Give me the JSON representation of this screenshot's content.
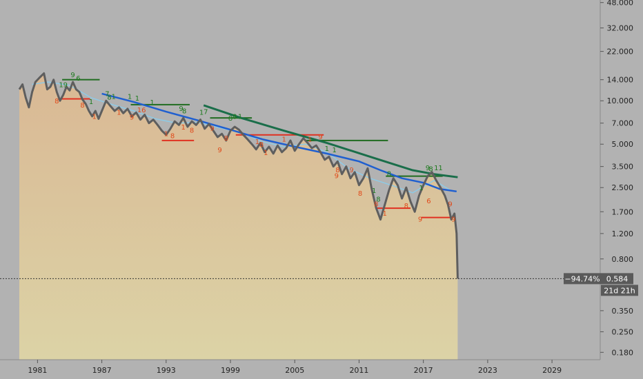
{
  "colors": {
    "background": "#b2b2b2",
    "price": "#5e5e5e",
    "area_top": "#d9b894",
    "area_bottom": "#dcd3a6",
    "ma_fast": "#8ecae6",
    "ma_mid": "#1f5fd0",
    "ma_slow": "#1a6e4a",
    "buy_signal": "#1d7a1d",
    "sell_signal": "#e04a1a",
    "resistance": "#1f6b1f",
    "support": "#e03020",
    "tag_bg": "#5a5a5a"
  },
  "chart_data": {
    "type": "line",
    "scale": "log",
    "ylim": [
      0.16,
      50
    ],
    "xlim": [
      1977.5,
      2033.5
    ],
    "y_ticks": [
      "48.000",
      "32.000",
      "22.000",
      "14.000",
      "10.000",
      "7.000",
      "5.000",
      "3.500",
      "2.500",
      "1.700",
      "1.200",
      "0.800",
      "0.350",
      "0.250",
      "0.180"
    ],
    "y_tick_values": [
      48,
      32,
      22,
      14,
      10,
      7,
      5,
      3.5,
      2.5,
      1.7,
      1.2,
      0.8,
      0.35,
      0.25,
      0.18
    ],
    "x_ticks": [
      "1981",
      "1987",
      "1993",
      "1999",
      "2005",
      "2011",
      "2017",
      "2023",
      "2029"
    ],
    "x_tick_values": [
      1981,
      1987,
      1993,
      1999,
      2005,
      2011,
      2017,
      2023,
      2029
    ],
    "grid": false,
    "price_series": {
      "x": [
        1979.3,
        1979.6,
        1979.9,
        1980.2,
        1980.5,
        1980.8,
        1981.2,
        1981.6,
        1981.9,
        1982.2,
        1982.5,
        1982.8,
        1983.1,
        1983.4,
        1983.7,
        1984.0,
        1984.3,
        1984.6,
        1984.9,
        1985.2,
        1985.5,
        1985.8,
        1986.1,
        1986.4,
        1986.7,
        1987.0,
        1987.4,
        1987.8,
        1988.2,
        1988.6,
        1989.0,
        1989.4,
        1989.8,
        1990.2,
        1990.6,
        1991.0,
        1991.4,
        1991.8,
        1992.2,
        1992.6,
        1993.0,
        1993.4,
        1993.8,
        1994.2,
        1994.6,
        1995.0,
        1995.4,
        1995.8,
        1996.2,
        1996.6,
        1997.0,
        1997.4,
        1997.8,
        1998.2,
        1998.6,
        1999.0,
        1999.4,
        1999.8,
        2000.2,
        2000.6,
        2001.0,
        2001.4,
        2001.8,
        2002.2,
        2002.6,
        2003.0,
        2003.4,
        2003.8,
        2004.2,
        2004.6,
        2005.0,
        2005.4,
        2005.8,
        2006.2,
        2006.6,
        2007.0,
        2007.4,
        2007.8,
        2008.2,
        2008.6,
        2009.0,
        2009.4,
        2009.8,
        2010.2,
        2010.6,
        2011.0,
        2011.4,
        2011.8,
        2012.2,
        2012.6,
        2013.0,
        2013.4,
        2013.8,
        2014.2,
        2014.6,
        2015.0,
        2015.4,
        2015.8,
        2016.2,
        2016.6,
        2017.0,
        2017.4,
        2017.8,
        2018.2,
        2018.6,
        2019.0,
        2019.3,
        2019.6,
        2019.9,
        2020.1,
        2020.2
      ],
      "y": [
        12.0,
        13.0,
        10.5,
        9.0,
        11.5,
        13.5,
        14.5,
        15.5,
        12.0,
        12.5,
        14.0,
        11.5,
        10.0,
        11.0,
        12.5,
        11.8,
        13.5,
        12.0,
        11.5,
        10.2,
        9.5,
        8.5,
        7.8,
        8.5,
        7.5,
        8.5,
        10.0,
        9.2,
        8.5,
        9.0,
        8.2,
        8.8,
        7.8,
        8.3,
        7.4,
        8.0,
        7.0,
        7.4,
        6.8,
        6.2,
        5.8,
        6.4,
        7.2,
        6.8,
        7.6,
        6.6,
        7.2,
        6.8,
        7.4,
        6.4,
        6.9,
        6.2,
        5.6,
        5.9,
        5.3,
        6.2,
        6.6,
        6.3,
        5.8,
        5.4,
        5.0,
        4.6,
        5.1,
        4.4,
        4.8,
        4.3,
        4.9,
        4.4,
        4.7,
        5.3,
        4.5,
        5.0,
        5.5,
        5.1,
        4.7,
        4.9,
        4.4,
        3.9,
        4.1,
        3.5,
        3.8,
        3.1,
        3.5,
        2.9,
        3.2,
        2.6,
        2.9,
        3.4,
        2.4,
        1.8,
        1.5,
        1.9,
        2.4,
        2.9,
        2.6,
        2.1,
        2.5,
        2.0,
        1.7,
        2.2,
        2.6,
        3.0,
        3.2,
        2.8,
        2.5,
        2.2,
        1.9,
        1.5,
        1.65,
        1.2,
        0.584
      ]
    },
    "ma_fast": {
      "x": [
        1980.5,
        1982,
        1984,
        1986,
        1988,
        1990,
        1992,
        1994,
        1996,
        1998,
        2000,
        2002,
        2004,
        2006,
        2008,
        2010,
        2012,
        2014,
        2016,
        2018,
        2019.5
      ],
      "y": [
        13.0,
        13.5,
        12.8,
        10.5,
        9.4,
        8.5,
        7.5,
        7.0,
        7.1,
        6.5,
        6.0,
        5.2,
        4.8,
        5.0,
        4.4,
        3.4,
        2.9,
        2.6,
        2.3,
        2.8,
        2.4
      ]
    },
    "ma_mid": {
      "x": [
        1987.0,
        1990,
        1993,
        1996,
        1999,
        2002,
        2005,
        2008,
        2011,
        2013,
        2015,
        2017,
        2018.5,
        2020.1
      ],
      "y": [
        11.2,
        9.8,
        8.4,
        7.3,
        6.3,
        5.4,
        4.8,
        4.3,
        3.8,
        3.3,
        2.9,
        2.7,
        2.45,
        2.35
      ]
    },
    "ma_slow": {
      "x": [
        1996.5,
        2000,
        2004,
        2008,
        2012,
        2016,
        2018,
        2020.2
      ],
      "y": [
        9.3,
        7.6,
        6.2,
        5.1,
        4.1,
        3.3,
        3.1,
        2.95
      ]
    },
    "resistance_levels": [
      {
        "x0": 1983.3,
        "x1": 1986.8,
        "y": 14.0
      },
      {
        "x0": 1989.7,
        "x1": 1995.2,
        "y": 9.4
      },
      {
        "x0": 1997.1,
        "x1": 2001.0,
        "y": 7.6
      },
      {
        "x0": 2006.0,
        "x1": 2013.7,
        "y": 5.3
      },
      {
        "x0": 2013.5,
        "x1": 2018.8,
        "y": 3.0
      }
    ],
    "support_levels": [
      {
        "x0": 1983.0,
        "x1": 1985.9,
        "y": 10.3
      },
      {
        "x0": 1992.6,
        "x1": 1995.6,
        "y": 5.3
      },
      {
        "x0": 1999.5,
        "x1": 2007.7,
        "y": 5.8
      },
      {
        "x0": 2012.6,
        "x1": 2015.8,
        "y": 1.8
      },
      {
        "x0": 2016.8,
        "x1": 2019.8,
        "y": 1.55
      }
    ],
    "buy_signals": [
      {
        "x": 1984.3,
        "y": 14.6,
        "label": "9"
      },
      {
        "x": 1984.8,
        "y": 13.8,
        "label": "6"
      },
      {
        "x": 1983.6,
        "y": 12.4,
        "label": "9"
      },
      {
        "x": 1983.2,
        "y": 12.4,
        "label": "1"
      },
      {
        "x": 1987.5,
        "y": 10.8,
        "label": "7"
      },
      {
        "x": 1987.7,
        "y": 10.2,
        "label": "8"
      },
      {
        "x": 1988.1,
        "y": 10.3,
        "label": "1"
      },
      {
        "x": 1986.0,
        "y": 9.5,
        "label": "1"
      },
      {
        "x": 1989.6,
        "y": 10.3,
        "label": "1"
      },
      {
        "x": 1990.3,
        "y": 10.0,
        "label": "1"
      },
      {
        "x": 1991.7,
        "y": 9.4,
        "label": "1"
      },
      {
        "x": 1994.4,
        "y": 8.5,
        "label": "9"
      },
      {
        "x": 1994.7,
        "y": 8.2,
        "label": "8"
      },
      {
        "x": 1996.3,
        "y": 8.0,
        "label": "1"
      },
      {
        "x": 1996.7,
        "y": 8.1,
        "label": "7"
      },
      {
        "x": 1999.0,
        "y": 7.3,
        "label": "8"
      },
      {
        "x": 1999.4,
        "y": 7.5,
        "label": "8"
      },
      {
        "x": 1999.9,
        "y": 7.5,
        "label": "1"
      },
      {
        "x": 2008.0,
        "y": 4.5,
        "label": "1"
      },
      {
        "x": 2008.7,
        "y": 4.4,
        "label": "1"
      },
      {
        "x": 2013.8,
        "y": 3.0,
        "label": "8"
      },
      {
        "x": 2017.4,
        "y": 3.3,
        "label": "9"
      },
      {
        "x": 2017.7,
        "y": 3.25,
        "label": "8"
      },
      {
        "x": 2018.2,
        "y": 3.3,
        "label": "1"
      },
      {
        "x": 2018.6,
        "y": 3.3,
        "label": "1"
      },
      {
        "x": 2012.4,
        "y": 2.3,
        "label": "1"
      },
      {
        "x": 2016.8,
        "y": 2.4,
        "label": "1"
      },
      {
        "x": 2012.8,
        "y": 2.0,
        "label": "8"
      }
    ],
    "sell_signals": [
      {
        "x": 1982.8,
        "y": 9.6,
        "label": "8"
      },
      {
        "x": 1985.2,
        "y": 9.0,
        "label": "8"
      },
      {
        "x": 1986.3,
        "y": 7.5,
        "label": "1"
      },
      {
        "x": 1988.6,
        "y": 8.0,
        "label": "1"
      },
      {
        "x": 1989.8,
        "y": 7.4,
        "label": "9"
      },
      {
        "x": 1990.7,
        "y": 8.3,
        "label": "16"
      },
      {
        "x": 1993.0,
        "y": 5.7,
        "label": "1"
      },
      {
        "x": 1993.6,
        "y": 5.5,
        "label": "8"
      },
      {
        "x": 1995.4,
        "y": 6.0,
        "label": "8"
      },
      {
        "x": 1997.3,
        "y": 6.2,
        "label": "9"
      },
      {
        "x": 1998.6,
        "y": 5.3,
        "label": "8"
      },
      {
        "x": 1998.0,
        "y": 4.4,
        "label": "9"
      },
      {
        "x": 2001.5,
        "y": 5.0,
        "label": "1"
      },
      {
        "x": 2001.9,
        "y": 4.8,
        "label": "8"
      },
      {
        "x": 2006.4,
        "y": 5.2,
        "label": "1"
      },
      {
        "x": 2007.4,
        "y": 5.4,
        "label": "9"
      },
      {
        "x": 2004.0,
        "y": 5.2,
        "label": "1"
      },
      {
        "x": 2008.9,
        "y": 2.9,
        "label": "9"
      },
      {
        "x": 2010.3,
        "y": 3.2,
        "label": "9"
      },
      {
        "x": 2009.0,
        "y": 3.2,
        "label": "8"
      },
      {
        "x": 2011.1,
        "y": 2.2,
        "label": "8"
      },
      {
        "x": 2012.6,
        "y": 1.85,
        "label": "8"
      },
      {
        "x": 2013.4,
        "y": 1.6,
        "label": "1"
      },
      {
        "x": 2015.4,
        "y": 1.8,
        "label": "8"
      },
      {
        "x": 2016.7,
        "y": 1.45,
        "label": "9"
      },
      {
        "x": 2017.5,
        "y": 1.95,
        "label": "6"
      },
      {
        "x": 2019.5,
        "y": 1.85,
        "label": "9"
      },
      {
        "x": 2019.8,
        "y": 1.45,
        "label": "9"
      },
      {
        "x": 2002.3,
        "y": 4.2,
        "label": "1"
      },
      {
        "x": 1994.6,
        "y": 6.3,
        "label": "1"
      }
    ],
    "last_price": 0.584,
    "last_price_label": "0.584",
    "change_label": "−94.74%",
    "countdown_label": "21d 21h"
  }
}
